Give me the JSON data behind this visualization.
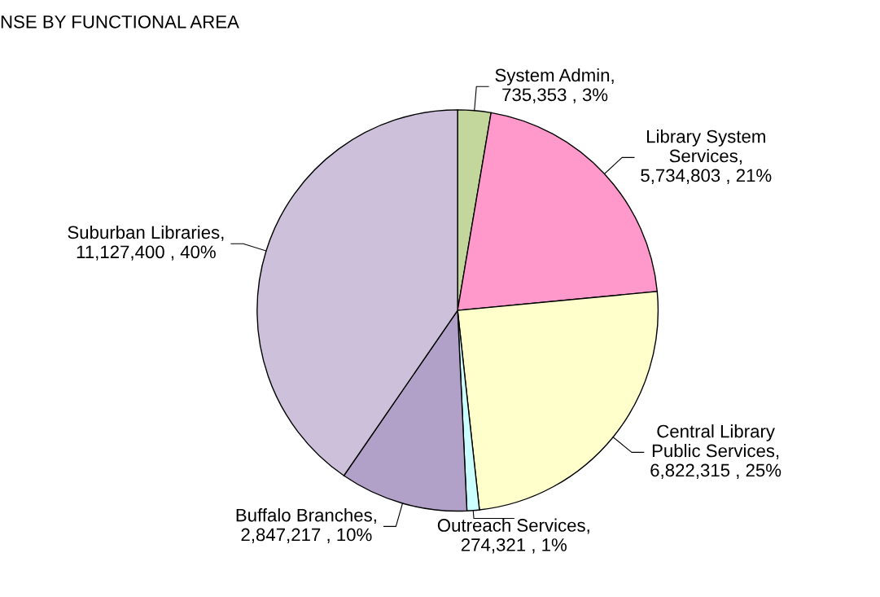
{
  "chart_data": {
    "type": "pie",
    "title": "NSE BY FUNCTIONAL AREA",
    "categories": [
      "System Admin",
      "Library System Services",
      "Central Library Public Services",
      "Outreach Services",
      "Buffalo Branches",
      "Suburban Libraries"
    ],
    "values": [
      735353,
      5734803,
      6822315,
      274321,
      2847217,
      11127400
    ],
    "value_labels": [
      ", 735,353 , 3%",
      ", 5,734,803 , 21%",
      ", 6,822,315 , 25%",
      ", 274,321 , 1%",
      ", 2,847,217 , 10%",
      ", 11,127,400 , 40%"
    ],
    "colors": [
      "#c3d69b",
      "#ff99cc",
      "#ffffcc",
      "#ccffff",
      "#b1a0c7",
      "#ccc0da"
    ],
    "legend": false
  }
}
